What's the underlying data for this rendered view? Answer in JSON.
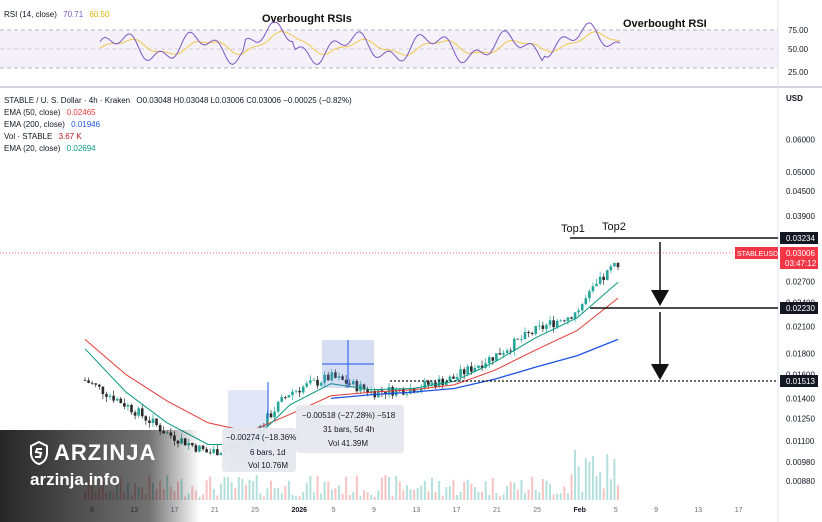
{
  "rsi_panel": {
    "name": "RSI (14, close)",
    "value1": "70.71",
    "value2": "60.50",
    "scale_labels": [
      "75.00",
      "50.00",
      "25.00"
    ],
    "annotation_left": "Overbought RSIs",
    "annotation_right": "Overbought RSI"
  },
  "legend": {
    "symbol": "STABLE / U. S. Dollar · 4h · Kraken",
    "ohlc": "O0.03048 H0.03048 L0.03006 C0.03006 −0.00025 (−0.82%)",
    "ema50_label": "EMA (50, close)",
    "ema50_value": "0.02465",
    "ema200_label": "EMA (200, close)",
    "ema200_value": "0.01946",
    "vol_label": "Vol · STABLE",
    "vol_value": "3.67 K",
    "ema20_label": "EMA (20, close)",
    "ema20_value": "0.02694"
  },
  "currency": "USD",
  "price_axis": [
    "0.06000",
    "0.05000",
    "0.04500",
    "0.03900",
    "0.03500",
    "0.02700",
    "0.02400",
    "0.02100",
    "0.01800",
    "0.01600",
    "0.01400",
    "0.01250",
    "0.01100",
    "0.00980",
    "0.00880"
  ],
  "time_axis": [
    "8",
    "13",
    "17",
    "21",
    "25",
    "2026",
    "5",
    "9",
    "13",
    "17",
    "21",
    "25",
    "Feb",
    "5",
    "9",
    "13",
    "17"
  ],
  "badges": {
    "level_top": "0.03234",
    "ticker": "STABLEUSD",
    "price": "0.03006",
    "countdown": "03:47:12",
    "level_mid": "0.02230",
    "level_low": "0.01513"
  },
  "annotations": {
    "top1": "Top1",
    "top2": "Top2"
  },
  "measure_small": {
    "line1": "−0.00274 (−18.36%)",
    "line2": "6 bars, 1d",
    "line3": "Vol 10.76M"
  },
  "measure_large": {
    "line1": "−0.00518 (−27.28%) −518",
    "line2": "31 bars, 5d 4h",
    "line3": "Vol 41.39M"
  },
  "watermark": {
    "brand": "ARZINJA",
    "site": "arzinja.info"
  },
  "colors": {
    "ema50": "#e53935",
    "ema200": "#1e53e5",
    "ema20": "#089981",
    "vol": "#b71c1c",
    "rsi": "#7e57c2",
    "rsi_ma": "#f2c94c",
    "up": "#26a69a",
    "down": "#2b2b2b",
    "badge_blue": "#131722",
    "badge_red": "#f23645"
  },
  "chart_data": {
    "type": "line",
    "title": "STABLE / U. S. Dollar · 4h · Kraken",
    "x": [
      "8",
      "13",
      "17",
      "21",
      "25",
      "2026",
      "5",
      "9",
      "13",
      "17",
      "21",
      "25",
      "Feb",
      "5"
    ],
    "series": [
      {
        "name": "STABLE / U. S. Dollar",
        "values": [
          0.0155,
          0.0135,
          0.0115,
          0.0103,
          0.0109,
          0.0145,
          0.0158,
          0.0145,
          0.0148,
          0.0157,
          0.0178,
          0.0205,
          0.0228,
          0.0302
        ]
      },
      {
        "name": "EMA (20, close)",
        "values": [
          0.0185,
          0.0145,
          0.0122,
          0.0108,
          0.0108,
          0.0135,
          0.0152,
          0.0147,
          0.0148,
          0.0154,
          0.0172,
          0.0197,
          0.022,
          0.0269
        ]
      },
      {
        "name": "EMA (50, close)",
        "values": [
          0.0195,
          0.016,
          0.0138,
          0.0122,
          0.0116,
          0.0128,
          0.0142,
          0.0145,
          0.0147,
          0.0151,
          0.0164,
          0.0184,
          0.0205,
          0.0246
        ]
      },
      {
        "name": "EMA (200, close)",
        "values": [
          null,
          null,
          null,
          null,
          null,
          null,
          0.014,
          0.0143,
          0.0145,
          0.0148,
          0.0156,
          0.0167,
          0.0178,
          0.0195
        ]
      }
    ],
    "levels": [
      0.03234,
      0.0223,
      0.01513
    ],
    "y_scale": "log",
    "ylim": [
      0.0086,
      0.067
    ],
    "grid": false,
    "legend_position": "top-left"
  }
}
